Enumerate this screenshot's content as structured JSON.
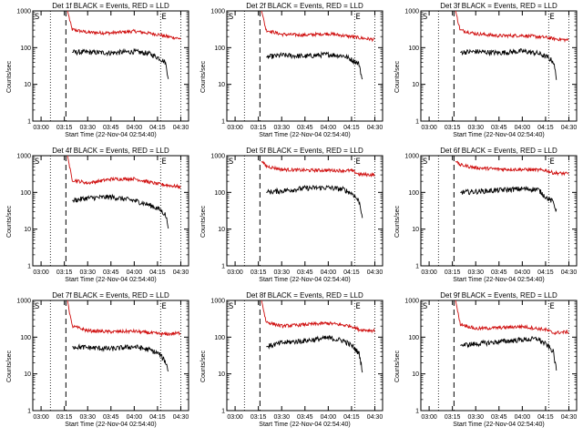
{
  "chart_data": [
    {
      "type": "line",
      "title": "Det 1f BLACK = Events, RED = LLD",
      "xlabel": "Start Time (22-Nov-04 02:54:40)",
      "ylabel": "Counts/sec",
      "yscale": "log",
      "ylim": [
        1,
        1000
      ],
      "xlim": [
        "02:54:40",
        "04:35:00"
      ],
      "x_ticks": [
        "03:00",
        "03:15",
        "03:30",
        "03:45",
        "04:00",
        "04:15",
        "04:30"
      ],
      "y_ticks": [
        "1",
        "10",
        "100",
        "1000"
      ],
      "markers": [
        "S",
        "E"
      ],
      "vlines_dotted": [
        "03:06",
        "04:17",
        "04:30"
      ],
      "vline_dashed": "03:16",
      "series": [
        {
          "name": "LLD",
          "color": "#d01010",
          "x": [
            "03:17",
            "03:20",
            "03:30",
            "03:45",
            "04:00",
            "04:15",
            "04:20",
            "04:30"
          ],
          "y": [
            1000,
            310,
            260,
            250,
            280,
            230,
            205,
            175
          ]
        },
        {
          "name": "Events",
          "color": "#000000",
          "x": [
            "03:20",
            "03:30",
            "03:45",
            "04:00",
            "04:10",
            "04:16",
            "04:20",
            "04:22"
          ],
          "y": [
            75,
            75,
            72,
            78,
            68,
            52,
            40,
            15
          ]
        }
      ]
    },
    {
      "type": "line",
      "title": "Det 2f BLACK = Events, RED = LLD",
      "xlabel": "Start Time (22-Nov-04 02:54:40)",
      "ylabel": "Counts/sec",
      "yscale": "log",
      "ylim": [
        1,
        1000
      ],
      "xlim": [
        "02:54:40",
        "04:35:00"
      ],
      "x_ticks": [
        "03:00",
        "03:15",
        "03:30",
        "03:45",
        "04:00",
        "04:15",
        "04:30"
      ],
      "y_ticks": [
        "1",
        "10",
        "100",
        "1000"
      ],
      "markers": [
        "S",
        "E"
      ],
      "vlines_dotted": [
        "03:06",
        "04:17",
        "04:30"
      ],
      "vline_dashed": "03:16",
      "series": [
        {
          "name": "LLD",
          "color": "#d01010",
          "x": [
            "03:17",
            "03:20",
            "03:30",
            "03:45",
            "04:00",
            "04:15",
            "04:20",
            "04:30"
          ],
          "y": [
            1000,
            300,
            230,
            220,
            240,
            200,
            185,
            165
          ]
        },
        {
          "name": "Events",
          "color": "#000000",
          "x": [
            "03:20",
            "03:30",
            "03:45",
            "04:00",
            "04:10",
            "04:16",
            "04:20",
            "04:22"
          ],
          "y": [
            55,
            62,
            58,
            65,
            60,
            45,
            35,
            12
          ]
        }
      ]
    },
    {
      "type": "line",
      "title": "Det 3f BLACK = Events, RED = LLD",
      "xlabel": "Start Time (22-Nov-04 02:54:40)",
      "ylabel": "Counts/sec",
      "yscale": "log",
      "ylim": [
        1,
        1000
      ],
      "xlim": [
        "02:54:40",
        "04:35:00"
      ],
      "x_ticks": [
        "03:00",
        "03:15",
        "03:30",
        "03:45",
        "04:00",
        "04:15",
        "04:30"
      ],
      "y_ticks": [
        "1",
        "10",
        "100",
        "1000"
      ],
      "markers": [
        "S",
        "E"
      ],
      "vlines_dotted": [
        "03:06",
        "04:17",
        "04:30"
      ],
      "vline_dashed": "03:16",
      "series": [
        {
          "name": "LLD",
          "color": "#d01010",
          "x": [
            "03:17",
            "03:20",
            "03:30",
            "03:45",
            "04:00",
            "04:15",
            "04:20",
            "04:30"
          ],
          "y": [
            1000,
            300,
            240,
            210,
            215,
            190,
            175,
            160
          ]
        },
        {
          "name": "Events",
          "color": "#000000",
          "x": [
            "03:20",
            "03:30",
            "03:45",
            "04:00",
            "04:10",
            "04:16",
            "04:20",
            "04:22"
          ],
          "y": [
            75,
            78,
            72,
            80,
            70,
            55,
            42,
            15
          ]
        }
      ]
    },
    {
      "type": "line",
      "title": "Det 4f BLACK = Events, RED = LLD",
      "xlabel": "Start Time (22-Nov-04 02:54:40)",
      "ylabel": "Counts/sec",
      "yscale": "log",
      "ylim": [
        1,
        1000
      ],
      "xlim": [
        "02:54:40",
        "04:35:00"
      ],
      "x_ticks": [
        "03:00",
        "03:15",
        "03:30",
        "03:45",
        "04:00",
        "04:15",
        "04:30"
      ],
      "y_ticks": [
        "1",
        "10",
        "100",
        "1000"
      ],
      "markers": [
        "S",
        "E"
      ],
      "vlines_dotted": [
        "03:06",
        "04:17",
        "04:30"
      ],
      "vline_dashed": "03:16",
      "series": [
        {
          "name": "LLD",
          "color": "#d01010",
          "x": [
            "03:17",
            "03:20",
            "03:30",
            "03:45",
            "04:00",
            "04:15",
            "04:20",
            "04:30"
          ],
          "y": [
            1000,
            220,
            180,
            230,
            235,
            170,
            160,
            140
          ]
        },
        {
          "name": "Events",
          "color": "#000000",
          "x": [
            "03:20",
            "03:30",
            "03:45",
            "04:00",
            "04:10",
            "04:16",
            "04:20",
            "04:22"
          ],
          "y": [
            60,
            70,
            75,
            60,
            45,
            35,
            25,
            12
          ]
        }
      ]
    },
    {
      "type": "line",
      "title": "Det 5f BLACK = Events, RED = LLD",
      "xlabel": "Start Time (22-Nov-04 02:54:40)",
      "ylabel": "Counts/sec",
      "yscale": "log",
      "ylim": [
        1,
        1000
      ],
      "xlim": [
        "02:54:40",
        "04:35:00"
      ],
      "x_ticks": [
        "03:00",
        "03:15",
        "03:30",
        "03:45",
        "04:00",
        "04:15",
        "04:30"
      ],
      "y_ticks": [
        "1",
        "10",
        "100",
        "1000"
      ],
      "markers": [
        "S",
        "E"
      ],
      "vlines_dotted": [
        "03:06",
        "04:17",
        "04:30"
      ],
      "vline_dashed": "03:16",
      "series": [
        {
          "name": "LLD",
          "color": "#d01010",
          "x": [
            "03:17",
            "03:20",
            "03:30",
            "03:45",
            "04:00",
            "04:15",
            "04:20",
            "04:30"
          ],
          "y": [
            700,
            520,
            420,
            400,
            400,
            390,
            310,
            300
          ]
        },
        {
          "name": "Events",
          "color": "#000000",
          "x": [
            "03:20",
            "03:30",
            "03:45",
            "04:00",
            "04:10",
            "04:16",
            "04:20",
            "04:22"
          ],
          "y": [
            100,
            110,
            130,
            135,
            120,
            90,
            55,
            22
          ]
        }
      ]
    },
    {
      "type": "line",
      "title": "Det 6f BLACK = Events, RED = LLD",
      "xlabel": "Start Time (22-Nov-04 02:54:40)",
      "ylabel": "Counts/sec",
      "yscale": "log",
      "ylim": [
        1,
        1000
      ],
      "xlim": [
        "02:54:40",
        "04:35:00"
      ],
      "x_ticks": [
        "03:00",
        "03:15",
        "03:30",
        "03:45",
        "04:00",
        "04:15",
        "04:30"
      ],
      "y_ticks": [
        "1",
        "10",
        "100",
        "1000"
      ],
      "markers": [
        "S",
        "E"
      ],
      "vlines_dotted": [
        "03:06",
        "04:17",
        "04:30"
      ],
      "vline_dashed": "03:16",
      "series": [
        {
          "name": "LLD",
          "color": "#d01010",
          "x": [
            "03:17",
            "03:20",
            "03:30",
            "03:45",
            "04:00",
            "04:15",
            "04:20",
            "04:30"
          ],
          "y": [
            700,
            560,
            470,
            430,
            420,
            400,
            340,
            320
          ]
        },
        {
          "name": "Events",
          "color": "#000000",
          "x": [
            "03:20",
            "03:30",
            "03:45",
            "04:00",
            "04:10",
            "04:16",
            "04:20",
            "04:22"
          ],
          "y": [
            100,
            105,
            115,
            125,
            120,
            70,
            55,
            30
          ]
        }
      ]
    },
    {
      "type": "line",
      "title": "Det 7f BLACK = Events, RED = LLD",
      "xlabel": "Start Time (22-Nov-04 02:54:40)",
      "ylabel": "Counts/sec",
      "yscale": "log",
      "ylim": [
        1,
        1000
      ],
      "xlim": [
        "02:54:40",
        "04:35:00"
      ],
      "x_ticks": [
        "03:00",
        "03:15",
        "03:30",
        "03:45",
        "04:00",
        "04:15",
        "04:30"
      ],
      "y_ticks": [
        "1",
        "10",
        "100",
        "1000"
      ],
      "markers": [
        "S",
        "E"
      ],
      "vlines_dotted": [
        "03:06",
        "04:17",
        "04:30"
      ],
      "vline_dashed": "03:16",
      "series": [
        {
          "name": "LLD",
          "color": "#d01010",
          "x": [
            "03:17",
            "03:20",
            "03:30",
            "03:45",
            "04:00",
            "04:15",
            "04:20",
            "04:30"
          ],
          "y": [
            1000,
            200,
            150,
            140,
            145,
            125,
            120,
            130
          ]
        },
        {
          "name": "Events",
          "color": "#000000",
          "x": [
            "03:20",
            "03:30",
            "03:45",
            "04:00",
            "04:10",
            "04:16",
            "04:20",
            "04:22"
          ],
          "y": [
            55,
            52,
            48,
            55,
            45,
            35,
            22,
            12
          ]
        }
      ]
    },
    {
      "type": "line",
      "title": "Det 8f BLACK = Events, RED = LLD",
      "xlabel": "Start Time (22-Nov-04 02:54:40)",
      "ylabel": "Counts/sec",
      "yscale": "log",
      "ylim": [
        1,
        1000
      ],
      "xlim": [
        "02:54:40",
        "04:35:00"
      ],
      "x_ticks": [
        "03:00",
        "03:15",
        "03:30",
        "03:45",
        "04:00",
        "04:15",
        "04:30"
      ],
      "y_ticks": [
        "1",
        "10",
        "100",
        "1000"
      ],
      "markers": [
        "S",
        "E"
      ],
      "vlines_dotted": [
        "03:06",
        "04:17",
        "04:30"
      ],
      "vline_dashed": "03:16",
      "series": [
        {
          "name": "LLD",
          "color": "#d01010",
          "x": [
            "03:17",
            "03:20",
            "03:30",
            "03:45",
            "04:00",
            "04:15",
            "04:20",
            "04:30"
          ],
          "y": [
            1000,
            260,
            200,
            220,
            240,
            200,
            160,
            150
          ]
        },
        {
          "name": "Events",
          "color": "#000000",
          "x": [
            "03:20",
            "03:30",
            "03:45",
            "04:00",
            "04:10",
            "04:16",
            "04:20",
            "04:22"
          ],
          "y": [
            55,
            70,
            80,
            95,
            80,
            55,
            35,
            12
          ]
        }
      ]
    },
    {
      "type": "line",
      "title": "Det 9f BLACK = Events, RED = LLD",
      "xlabel": "Start Time (22-Nov-04 02:54:40)",
      "ylabel": "Counts/sec",
      "yscale": "log",
      "ylim": [
        1,
        1000
      ],
      "xlim": [
        "02:54:40",
        "04:35:00"
      ],
      "x_ticks": [
        "03:00",
        "03:15",
        "03:30",
        "03:45",
        "04:00",
        "04:15",
        "04:30"
      ],
      "y_ticks": [
        "1",
        "10",
        "100",
        "1000"
      ],
      "markers": [
        "S",
        "E"
      ],
      "vlines_dotted": [
        "03:06",
        "04:17",
        "04:30"
      ],
      "vline_dashed": "03:16",
      "series": [
        {
          "name": "LLD",
          "color": "#d01010",
          "x": [
            "03:17",
            "03:20",
            "03:30",
            "03:45",
            "04:00",
            "04:15",
            "04:20",
            "04:30"
          ],
          "y": [
            1000,
            230,
            170,
            180,
            195,
            160,
            130,
            140
          ]
        },
        {
          "name": "Events",
          "color": "#000000",
          "x": [
            "03:20",
            "03:30",
            "03:45",
            "04:00",
            "04:10",
            "04:16",
            "04:20",
            "04:22"
          ],
          "y": [
            60,
            65,
            75,
            85,
            90,
            60,
            40,
            12
          ]
        }
      ]
    }
  ]
}
